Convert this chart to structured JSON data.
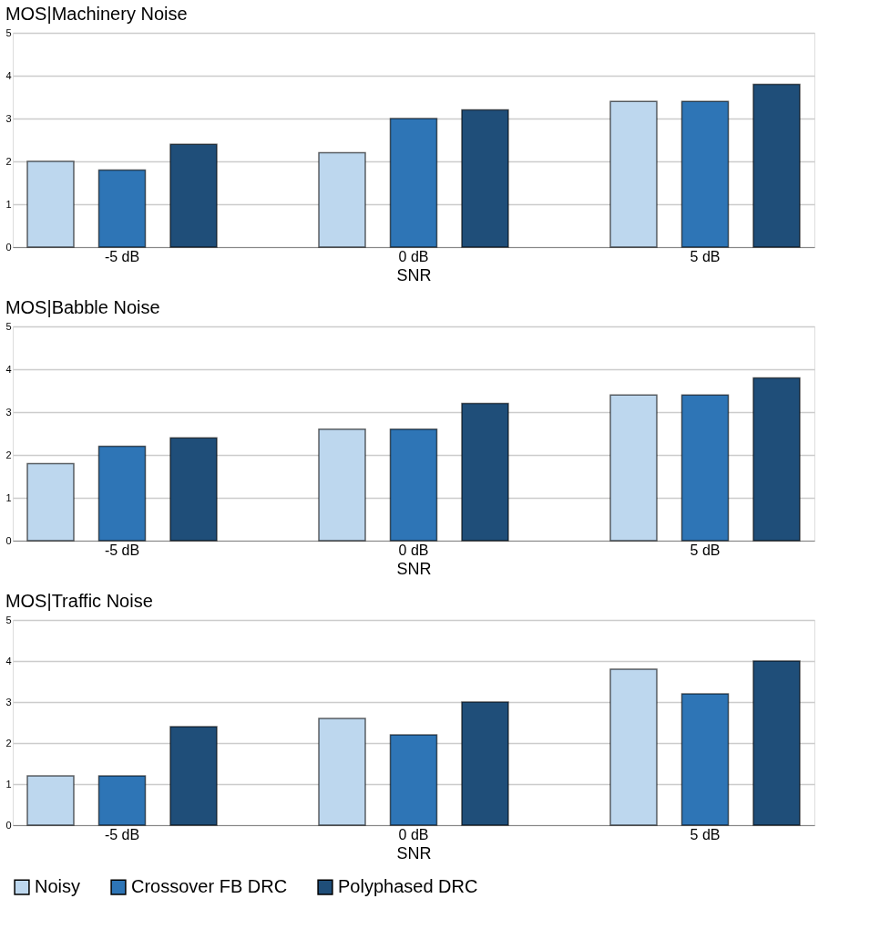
{
  "chart_data": [
    {
      "type": "bar",
      "title": "MOS|Machinery Noise",
      "xlabel": "SNR",
      "categories": [
        "-5 dB",
        "0 dB",
        "5 dB"
      ],
      "series": [
        {
          "color": "#bdd7ee",
          "values": [
            2.0,
            2.2,
            3.4
          ]
        },
        {
          "color": "#2e75b6",
          "values": [
            1.8,
            3.0,
            3.4
          ]
        },
        {
          "color": "#1f4e79",
          "values": [
            2.4,
            3.2,
            3.8
          ]
        }
      ],
      "ylim": [
        0,
        5
      ],
      "yticks": [
        0,
        1,
        2,
        3,
        4,
        5
      ],
      "grid": "y",
      "legend": false
    },
    {
      "type": "bar",
      "title": "MOS|Babble Noise",
      "xlabel": "SNR",
      "categories": [
        "-5 dB",
        "0 dB",
        "5 dB"
      ],
      "series": [
        {
          "color": "#bdd7ee",
          "values": [
            1.8,
            2.6,
            3.4
          ]
        },
        {
          "color": "#2e75b6",
          "values": [
            2.2,
            2.6,
            3.4
          ]
        },
        {
          "color": "#1f4e79",
          "values": [
            2.4,
            3.2,
            3.8
          ]
        }
      ],
      "ylim": [
        0,
        5
      ],
      "yticks": [
        0,
        1,
        2,
        3,
        4,
        5
      ],
      "grid": "y",
      "legend": false
    },
    {
      "type": "bar",
      "title": "MOS|Traffic Noise",
      "xlabel": "SNR",
      "categories": [
        "-5 dB",
        "0 dB",
        "5 dB"
      ],
      "series": [
        {
          "name": "Noisy",
          "color": "#bdd7ee",
          "values": [
            1.2,
            2.6,
            3.8
          ]
        },
        {
          "name": "Crossover FB DRC",
          "color": "#2e75b6",
          "values": [
            1.2,
            2.2,
            3.2
          ]
        },
        {
          "name": "Polyphased DRC",
          "color": "#1f4e79",
          "values": [
            2.4,
            3.0,
            4.0
          ]
        }
      ],
      "ylim": [
        0,
        5
      ],
      "yticks": [
        0,
        1,
        2,
        3,
        4,
        5
      ],
      "grid": "y",
      "legend": "bottom"
    }
  ]
}
